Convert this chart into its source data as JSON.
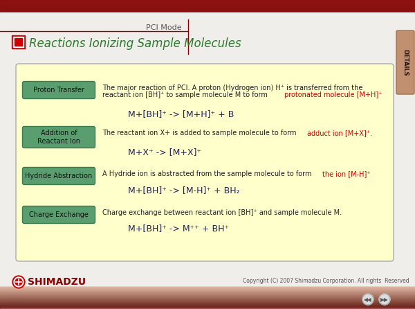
{
  "title": "Reactions Ionizing Sample Molecules",
  "subtitle": "PCI Mode",
  "bg_top_color": "#9B1818",
  "header_bg": "#f0eeea",
  "panel_bg": "#FFFFCC",
  "panel_border": "#aaaaaa",
  "title_color": "#2d7a2d",
  "title_icon_outer": "#CC0000",
  "title_icon_inner": "#CC0000",
  "button_bg": "#5a9e6f",
  "button_border": "#3a7a4f",
  "button_text_color": "#111111",
  "body_text_color": "#222222",
  "highlight_color": "#CC0000",
  "equation_color": "#222255",
  "footer_text": "Copyright (C) 2007 Shimadzu Corporation. All rights  Reserved",
  "details_tab_color": "#C09070",
  "details_tab_border": "#A07050",
  "line_color": "#8B0000",
  "shimadzu_text_color": "#8B0000",
  "nav_btn_color": "#cccccc",
  "nav_btn_border": "#999999"
}
